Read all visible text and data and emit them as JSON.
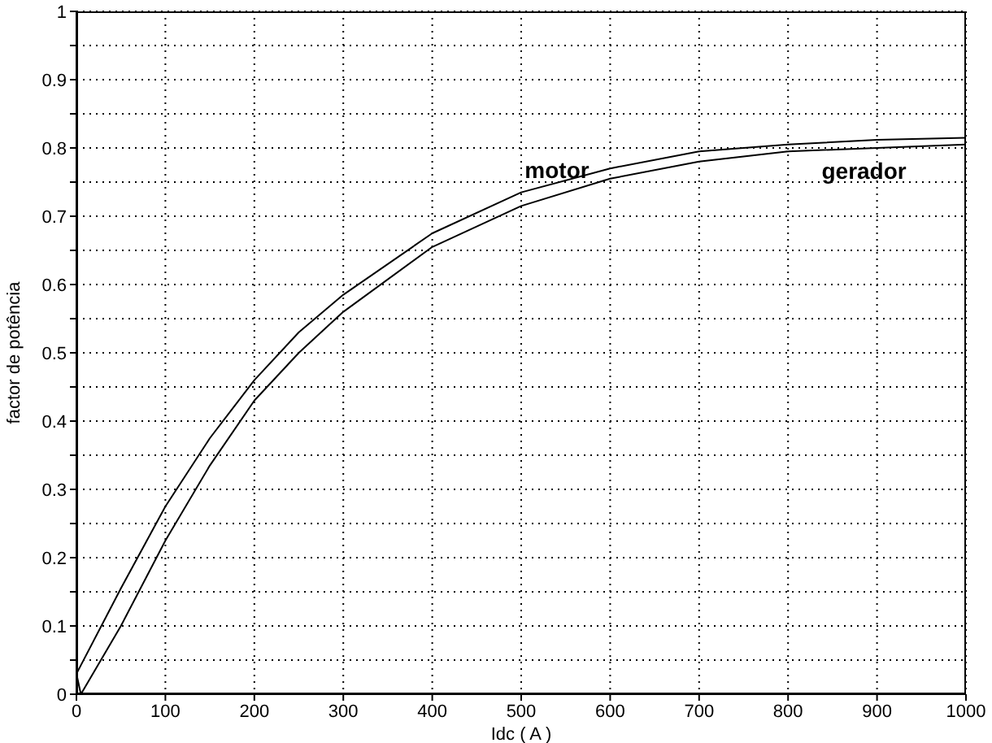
{
  "chart_data": {
    "type": "line",
    "xlabel": "Idc  ( A )",
    "ylabel": "factor de potência",
    "series": [
      {
        "name": "motor",
        "color": "#000000",
        "x": [
          0,
          50,
          100,
          150,
          200,
          250,
          300,
          400,
          500,
          600,
          700,
          800,
          900,
          1000
        ],
        "values": [
          0.03,
          0.155,
          0.275,
          0.375,
          0.46,
          0.53,
          0.585,
          0.675,
          0.735,
          0.77,
          0.795,
          0.805,
          0.812,
          0.815
        ]
      },
      {
        "name": "gerador",
        "color": "#000000",
        "x": [
          0,
          5,
          50,
          100,
          150,
          200,
          250,
          300,
          400,
          500,
          600,
          700,
          800,
          900,
          1000
        ],
        "values": [
          0.03,
          0,
          0.1,
          0.225,
          0.335,
          0.43,
          0.5,
          0.56,
          0.655,
          0.715,
          0.755,
          0.78,
          0.795,
          0.8,
          0.805
        ]
      }
    ],
    "xlim": [
      0,
      1000
    ],
    "xticks": [
      0,
      100,
      200,
      300,
      400,
      500,
      600,
      700,
      800,
      900,
      1000
    ],
    "ylim": [
      0,
      1
    ],
    "yticks": [
      0,
      {
        "value": 0.05,
        "label": null
      },
      0.1,
      {
        "value": 0.15,
        "label": null
      },
      0.2,
      {
        "value": 0.25,
        "label": null
      },
      0.3,
      {
        "value": 0.35,
        "label": null
      },
      0.4,
      {
        "value": 0.45,
        "label": null
      },
      0.5,
      {
        "value": 0.55,
        "label": null
      },
      0.6,
      {
        "value": 0.65,
        "label": null
      },
      0.7,
      {
        "value": 0.75,
        "label": null
      },
      0.8,
      {
        "value": 0.85,
        "label": null
      },
      0.9,
      {
        "value": 0.95,
        "label": null
      },
      1
    ],
    "grid": true,
    "legend": false,
    "marker": "none",
    "line_style": "solid"
  }
}
